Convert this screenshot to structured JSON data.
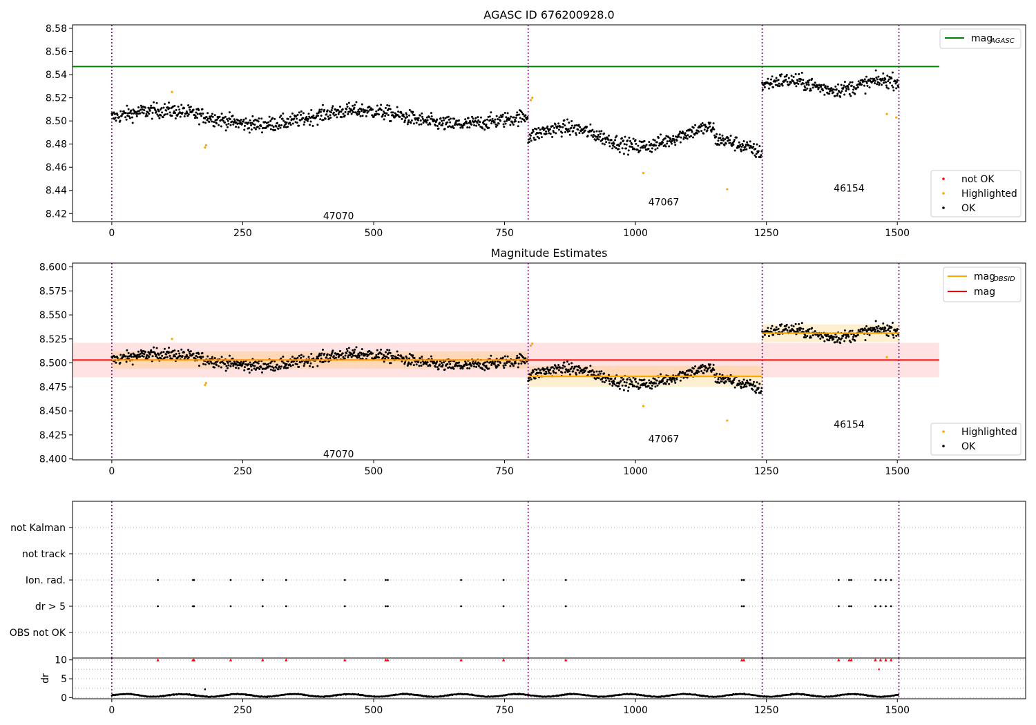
{
  "chart_data": [
    {
      "type": "scatter",
      "title": "AGASC ID 676200928.0",
      "xlim": [
        -75,
        1745
      ],
      "ylim": [
        8.413,
        8.583
      ],
      "xticks": [
        0,
        250,
        500,
        750,
        1000,
        1250,
        1500
      ],
      "yticks": [
        8.42,
        8.44,
        8.46,
        8.48,
        8.5,
        8.52,
        8.54,
        8.56,
        8.58
      ],
      "ytick_labels": [
        "8.42",
        "8.44",
        "8.46",
        "8.48",
        "8.50",
        "8.52",
        "8.54",
        "8.56",
        "8.58"
      ],
      "obs_boundaries": [
        0,
        795,
        1242,
        1503
      ],
      "obs_labels": [
        {
          "text": "47070",
          "x": 397,
          "y": 8.418
        },
        {
          "text": "47067",
          "x": 1018,
          "y": 8.43
        },
        {
          "text": "46154",
          "x": 1372,
          "y": 8.442
        }
      ],
      "mag_agasc": 8.547,
      "mag_agasc_range": [
        -75,
        1580
      ],
      "highlighted_points": [
        [
          115,
          8.525
        ],
        [
          178,
          8.477
        ],
        [
          180,
          8.479
        ],
        [
          800,
          8.518
        ],
        [
          803,
          8.52
        ],
        [
          1015,
          8.455
        ],
        [
          1175,
          8.441
        ],
        [
          1480,
          8.506
        ],
        [
          1498,
          8.503
        ]
      ],
      "legend_lines": [
        {
          "name": "mag",
          "sub": "AGASC",
          "color": "#008000"
        }
      ],
      "legend_points": [
        {
          "name": "not OK",
          "color": "#ff0000"
        },
        {
          "name": "Highlighted",
          "color": "#ffa500"
        },
        {
          "name": "OK",
          "color": "#000000"
        }
      ]
    },
    {
      "type": "scatter",
      "title": "Magnitude Estimates",
      "xlim": [
        -75,
        1745
      ],
      "ylim": [
        8.399,
        8.604
      ],
      "xticks": [
        0,
        250,
        500,
        750,
        1000,
        1250,
        1500
      ],
      "yticks": [
        8.4,
        8.425,
        8.45,
        8.475,
        8.5,
        8.525,
        8.55,
        8.575,
        8.6
      ],
      "ytick_labels": [
        "8.400",
        "8.425",
        "8.450",
        "8.475",
        "8.500",
        "8.525",
        "8.550",
        "8.575",
        "8.600"
      ],
      "obs_boundaries": [
        0,
        795,
        1242,
        1503
      ],
      "obs_labels": [
        {
          "text": "47070",
          "x": 397,
          "y": 8.405
        },
        {
          "text": "47067",
          "x": 1018,
          "y": 8.421
        },
        {
          "text": "46154",
          "x": 1372,
          "y": 8.436
        }
      ],
      "mag": 8.503,
      "mag_band": [
        8.485,
        8.521
      ],
      "mag_range": [
        -75,
        1580
      ],
      "mag_obsid": [
        {
          "x0": 0,
          "x1": 795,
          "value": 8.503,
          "band": [
            8.494,
            8.512
          ]
        },
        {
          "x0": 795,
          "x1": 1242,
          "value": 8.486,
          "band": [
            8.475,
            8.497
          ]
        },
        {
          "x0": 1242,
          "x1": 1503,
          "value": 8.531,
          "band": [
            8.522,
            8.54
          ]
        }
      ],
      "highlighted_points": [
        [
          115,
          8.525
        ],
        [
          178,
          8.477
        ],
        [
          180,
          8.479
        ],
        [
          800,
          8.518
        ],
        [
          803,
          8.52
        ],
        [
          1015,
          8.455
        ],
        [
          1175,
          8.44
        ],
        [
          1480,
          8.506
        ]
      ],
      "legend_lines": [
        {
          "name": "mag",
          "sub": "OBSID",
          "color": "#ffa500"
        },
        {
          "name": "mag",
          "sub": "",
          "color": "#ff0000"
        }
      ],
      "legend_points": [
        {
          "name": "Highlighted",
          "color": "#ffa500"
        },
        {
          "name": "OK",
          "color": "#000000"
        }
      ]
    },
    {
      "type": "scatter",
      "title": "",
      "xlim": [
        -75,
        1745
      ],
      "categories": [
        "not Kalman",
        "not track",
        "Ion. rad.",
        "dr > 5",
        "OBS not OK"
      ],
      "flag_times": [
        88,
        155,
        157,
        227,
        288,
        333,
        445,
        523,
        527,
        667,
        748,
        867,
        1203,
        1207,
        1388,
        1408,
        1412,
        1458,
        1468,
        1478,
        1488
      ],
      "flag_rows": [
        "Ion. rad.",
        "dr > 5"
      ],
      "obs_boundaries": [
        0,
        795,
        1242,
        1503
      ]
    },
    {
      "type": "scatter",
      "ylabel": "dr",
      "xlim": [
        -75,
        1745
      ],
      "ylim": [
        -0.3,
        10.5
      ],
      "yticks": [
        0,
        5,
        10
      ],
      "xticks": [
        0,
        250,
        500,
        750,
        1000,
        1250,
        1500
      ],
      "clipped_points_x": [
        88,
        155,
        157,
        227,
        288,
        333,
        445,
        523,
        527,
        667,
        748,
        867,
        1203,
        1207,
        1388,
        1408,
        1412,
        1458,
        1468,
        1478,
        1488
      ],
      "extra_points": [
        [
          1465,
          7.5
        ],
        [
          178,
          2.2
        ]
      ],
      "dr_baseline": 0.6,
      "obs_boundaries": [
        0,
        795,
        1242,
        1503
      ]
    }
  ]
}
